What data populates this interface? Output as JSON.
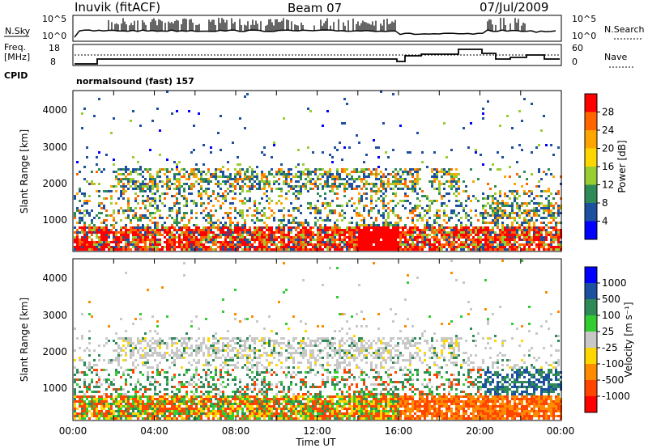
{
  "header": {
    "station": "Inuvik (fitACF)",
    "beam": "Beam 07",
    "date": "07/Jul/2009"
  },
  "strip_panels": {
    "nsky_label": "N.Sky",
    "nsky_ticks": [
      "10^5",
      "10^0"
    ],
    "nsearch_label": "N.Search",
    "nsearch_ticks": [
      "10^5",
      "10^0"
    ],
    "freq_label_1": "Freq.",
    "freq_label_2": "[MHz]",
    "freq_ticks": [
      "18",
      "8"
    ],
    "nave_label": "Nave",
    "nave_ticks": [
      "60",
      "0"
    ],
    "cpid_label": "CPID",
    "cpid_value": "normalsound (fast) 157"
  },
  "chart_data": [
    {
      "type": "heatmap",
      "name": "power-panel",
      "ylabel": "Slant Range [km]",
      "ylim": [
        180,
        4500
      ],
      "xlim_hours": [
        0,
        24
      ],
      "yticks": [
        "4000",
        "3000",
        "2000",
        "1000"
      ],
      "colorbar_label": "Power [dB]",
      "colorbar_ticks": [
        "28",
        "24",
        "20",
        "16",
        "12",
        "8",
        "4"
      ],
      "colorbar_colors": [
        "#ff0000",
        "#ff6600",
        "#ffa500",
        "#ffd700",
        "#9acd32",
        "#2e8b57",
        "#1e50a0",
        "#0000ff"
      ]
    },
    {
      "type": "heatmap",
      "name": "velocity-panel",
      "ylabel": "Slant Range [km]",
      "ylim": [
        180,
        4500
      ],
      "xlim_hours": [
        0,
        24
      ],
      "yticks": [
        "4000",
        "3000",
        "2000",
        "1000"
      ],
      "colorbar_label": "Velocity [m s⁻¹]",
      "colorbar_ticks": [
        "1000",
        "500",
        "100",
        "25",
        "-25",
        "-100",
        "-500",
        "-1000"
      ],
      "colorbar_colors": [
        "#0000ff",
        "#1e50a0",
        "#2e8b57",
        "#33cc33",
        "#c8c8c8",
        "#ffd700",
        "#ff8c00",
        "#ff4500",
        "#ff0000"
      ]
    }
  ],
  "xaxis": {
    "ticks": [
      "00:00",
      "04:00",
      "08:00",
      "12:00",
      "16:00",
      "20:00",
      "00:00"
    ],
    "label": "Time UT"
  }
}
